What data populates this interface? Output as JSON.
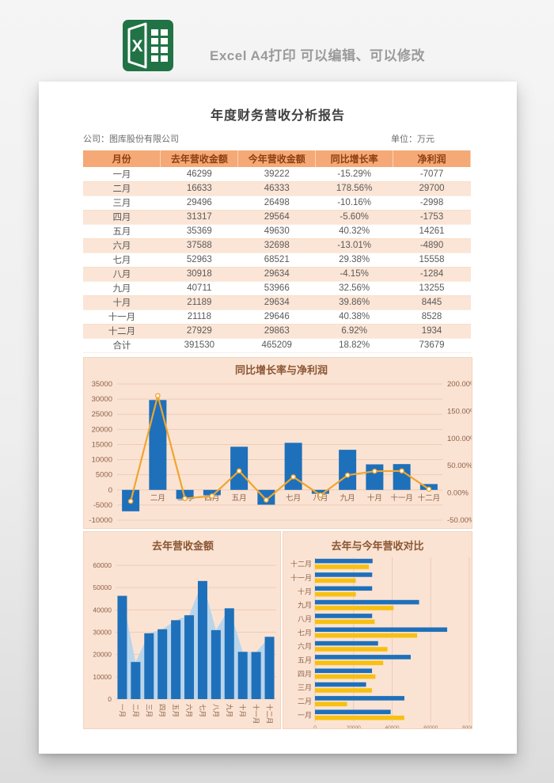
{
  "header": {
    "logo_letter": "X",
    "tagline": "Excel A4打印 可以编辑、可以修改"
  },
  "report": {
    "title": "年度财务营收分析报告",
    "company_label": "公司：图库股份有限公司",
    "unit_label": "单位：万元"
  },
  "table": {
    "columns": [
      "月份",
      "去年营收金额",
      "今年营收金额",
      "同比增长率",
      "净利润"
    ],
    "rows": [
      [
        "一月",
        "46299",
        "39222",
        "-15.29%",
        "-7077"
      ],
      [
        "二月",
        "16633",
        "46333",
        "178.56%",
        "29700"
      ],
      [
        "三月",
        "29496",
        "26498",
        "-10.16%",
        "-2998"
      ],
      [
        "四月",
        "31317",
        "29564",
        "-5.60%",
        "-1753"
      ],
      [
        "五月",
        "35369",
        "49630",
        "40.32%",
        "14261"
      ],
      [
        "六月",
        "37588",
        "32698",
        "-13.01%",
        "-4890"
      ],
      [
        "七月",
        "52963",
        "68521",
        "29.38%",
        "15558"
      ],
      [
        "八月",
        "30918",
        "29634",
        "-4.15%",
        "-1284"
      ],
      [
        "九月",
        "40711",
        "53966",
        "32.56%",
        "13255"
      ],
      [
        "十月",
        "21189",
        "29634",
        "39.86%",
        "8445"
      ],
      [
        "十一月",
        "21118",
        "29646",
        "40.38%",
        "8528"
      ],
      [
        "十二月",
        "27929",
        "29863",
        "6.92%",
        "1934"
      ]
    ],
    "total_row": [
      "合计",
      "391530",
      "465209",
      "18.82%",
      "73679"
    ]
  },
  "chart_data": [
    {
      "type": "bar-line-combo",
      "title": "同比增长率与净利润",
      "categories": [
        "一月",
        "二月",
        "三月",
        "四月",
        "五月",
        "六月",
        "七月",
        "八月",
        "九月",
        "十月",
        "十一月",
        "十二月"
      ],
      "bar_series": {
        "name": "净利润",
        "values": [
          -7077,
          29700,
          -2998,
          -1753,
          14261,
          -4890,
          15558,
          -1284,
          13255,
          8445,
          8528,
          1934
        ]
      },
      "line_series": {
        "name": "同比增长率",
        "values_pct": [
          -15.29,
          178.56,
          -10.16,
          -5.6,
          40.32,
          -13.01,
          29.38,
          -4.15,
          32.56,
          39.86,
          40.38,
          6.92
        ]
      },
      "left_axis": {
        "min": -10000,
        "max": 35000,
        "ticks": [
          "35000",
          "30000",
          "25000",
          "20000",
          "15000",
          "10000",
          "5000",
          "0",
          "-5000",
          "-10000"
        ]
      },
      "right_axis": {
        "min": -50,
        "max": 200,
        "ticks": [
          "200.00%",
          "150.00%",
          "100.00%",
          "50.00%",
          "0.00%",
          "-50.00%"
        ]
      },
      "grid": true,
      "legend": "none"
    },
    {
      "type": "bar-area",
      "title": "去年营收金额",
      "categories": [
        "一月",
        "二月",
        "三月",
        "四月",
        "五月",
        "六月",
        "七月",
        "八月",
        "九月",
        "十月",
        "十一月",
        "十二月"
      ],
      "values": [
        46299,
        16633,
        29496,
        31317,
        35369,
        37588,
        52963,
        30918,
        40711,
        21189,
        21118,
        27929
      ],
      "ylim": [
        0,
        60000
      ],
      "yticks": [
        "60000",
        "50000",
        "40000",
        "30000",
        "20000",
        "10000",
        "0"
      ],
      "grid": true,
      "legend": "none"
    },
    {
      "type": "hbar",
      "title": "去年与今年营收对比",
      "categories": [
        "一月",
        "二月",
        "三月",
        "四月",
        "五月",
        "六月",
        "七月",
        "八月",
        "九月",
        "十月",
        "十一月",
        "十二月"
      ],
      "series": [
        {
          "name": "今年营收金额",
          "color": "#1e70ba",
          "values": [
            39222,
            46333,
            26498,
            29564,
            49630,
            32698,
            68521,
            29634,
            53966,
            29634,
            29646,
            29863
          ]
        },
        {
          "name": "去年营收金额",
          "color": "#f7c012",
          "values": [
            46299,
            16633,
            29496,
            31317,
            35369,
            37588,
            52963,
            30918,
            40711,
            21189,
            21118,
            27929
          ]
        }
      ],
      "xlim": [
        0,
        80000
      ],
      "xticks": [
        "0",
        "20000",
        "40000",
        "60000",
        "80000"
      ],
      "grid": true,
      "legend": "none"
    }
  ],
  "colors": {
    "excel_green": "#217346",
    "tagline_gray": "#9a9a9a",
    "bar_blue": "#1e70ba",
    "line_gold": "#efa52f",
    "hbar_yellow": "#f7c012",
    "area_light_blue": "#b9d5ec",
    "panel_bg": "#fbe3d3",
    "grid_line": "#ecccb6",
    "axis_text": "#8c6248",
    "chart_title": "#8a5733",
    "table_header_bg": "#f4a976",
    "table_header_text": "#8d3f10",
    "row_alt": "#fbe5d6"
  }
}
